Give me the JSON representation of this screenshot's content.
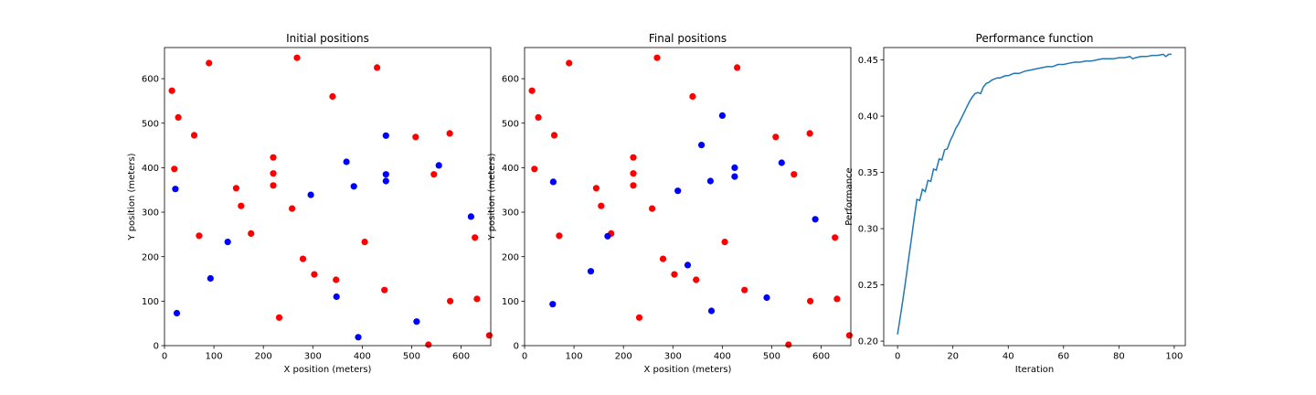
{
  "colors": {
    "red": "#ff0000",
    "blue": "#0000ff",
    "line": "#1f77b4"
  },
  "chart_data": [
    {
      "type": "scatter",
      "title": "Initial positions",
      "xlabel": "X position (meters)",
      "ylabel": "Y position (meters)",
      "xlim": [
        0,
        660
      ],
      "ylim": [
        0,
        670
      ],
      "xticks": [
        0,
        100,
        200,
        300,
        400,
        500,
        600
      ],
      "yticks": [
        0,
        100,
        200,
        300,
        400,
        500,
        600
      ],
      "series": [
        {
          "color": "red",
          "points": [
            [
              15,
              573
            ],
            [
              28,
              513
            ],
            [
              90,
              635
            ],
            [
              60,
              473
            ],
            [
              20,
              397
            ],
            [
              268,
              647
            ],
            [
              430,
              625
            ],
            [
              340,
              560
            ],
            [
              220,
              423
            ],
            [
              508,
              469
            ],
            [
              577,
              477
            ],
            [
              220,
              387
            ],
            [
              545,
              385
            ],
            [
              220,
              360
            ],
            [
              145,
              354
            ],
            [
              155,
              314
            ],
            [
              258,
              308
            ],
            [
              70,
              247
            ],
            [
              175,
              252
            ],
            [
              405,
              233
            ],
            [
              628,
              243
            ],
            [
              280,
              195
            ],
            [
              303,
              160
            ],
            [
              347,
              148
            ],
            [
              445,
              125
            ],
            [
              578,
              100
            ],
            [
              632,
              105
            ],
            [
              232,
              63
            ],
            [
              534,
              2
            ],
            [
              657,
              23
            ]
          ]
        },
        {
          "color": "blue",
          "points": [
            [
              22,
              352
            ],
            [
              448,
              472
            ],
            [
              368,
              413
            ],
            [
              555,
              405
            ],
            [
              448,
              385
            ],
            [
              448,
              370
            ],
            [
              383,
              358
            ],
            [
              296,
              339
            ],
            [
              620,
              290
            ],
            [
              128,
              233
            ],
            [
              93,
              151
            ],
            [
              348,
              110
            ],
            [
              510,
              54
            ],
            [
              25,
              73
            ],
            [
              392,
              19
            ]
          ]
        }
      ]
    },
    {
      "type": "scatter",
      "title": "Final positions",
      "xlabel": "X position (meters)",
      "ylabel": "Y position (meters)",
      "xlim": [
        0,
        660
      ],
      "ylim": [
        0,
        670
      ],
      "xticks": [
        0,
        100,
        200,
        300,
        400,
        500,
        600
      ],
      "yticks": [
        0,
        100,
        200,
        300,
        400,
        500,
        600
      ],
      "series": [
        {
          "color": "red",
          "points": [
            [
              15,
              573
            ],
            [
              28,
              513
            ],
            [
              90,
              635
            ],
            [
              60,
              473
            ],
            [
              20,
              397
            ],
            [
              268,
              647
            ],
            [
              430,
              625
            ],
            [
              340,
              560
            ],
            [
              220,
              423
            ],
            [
              508,
              469
            ],
            [
              577,
              477
            ],
            [
              220,
              387
            ],
            [
              545,
              385
            ],
            [
              220,
              360
            ],
            [
              145,
              354
            ],
            [
              155,
              314
            ],
            [
              258,
              308
            ],
            [
              70,
              247
            ],
            [
              175,
              252
            ],
            [
              405,
              233
            ],
            [
              628,
              243
            ],
            [
              280,
              195
            ],
            [
              303,
              160
            ],
            [
              347,
              148
            ],
            [
              445,
              125
            ],
            [
              578,
              100
            ],
            [
              632,
              105
            ],
            [
              232,
              63
            ],
            [
              534,
              2
            ],
            [
              657,
              23
            ]
          ]
        },
        {
          "color": "blue",
          "points": [
            [
              400,
              517
            ],
            [
              358,
              451
            ],
            [
              520,
              411
            ],
            [
              425,
              400
            ],
            [
              425,
              380
            ],
            [
              376,
              370
            ],
            [
              58,
              368
            ],
            [
              310,
              348
            ],
            [
              588,
              284
            ],
            [
              168,
              246
            ],
            [
              134,
              167
            ],
            [
              330,
              181
            ],
            [
              490,
              108
            ],
            [
              57,
              93
            ],
            [
              378,
              78
            ]
          ]
        }
      ]
    },
    {
      "type": "line",
      "title": "Performance function",
      "xlabel": "Iteration",
      "ylabel": "Performance",
      "xlim": [
        -5,
        104
      ],
      "ylim": [
        0.196,
        0.461
      ],
      "xticks": [
        0,
        20,
        40,
        60,
        80,
        100
      ],
      "yticks": [
        0.2,
        0.25,
        0.3,
        0.35,
        0.4,
        0.45
      ],
      "ytick_labels": [
        "0.20",
        "0.25",
        "0.30",
        "0.35",
        "0.40",
        "0.45"
      ],
      "series": [
        {
          "color": "line",
          "x": [
            0,
            1,
            2,
            3,
            4,
            5,
            6,
            7,
            8,
            9,
            10,
            11,
            12,
            13,
            14,
            15,
            16,
            17,
            18,
            19,
            20,
            21,
            22,
            23,
            24,
            25,
            26,
            27,
            28,
            29,
            30,
            31,
            32,
            33,
            34,
            35,
            36,
            37,
            38,
            39,
            40,
            42,
            44,
            46,
            48,
            50,
            52,
            54,
            56,
            58,
            60,
            62,
            64,
            66,
            68,
            70,
            72,
            74,
            76,
            78,
            80,
            82,
            84,
            85,
            86,
            88,
            90,
            92,
            94,
            96,
            97,
            98,
            99
          ],
          "y": [
            0.206,
            0.222,
            0.238,
            0.255,
            0.273,
            0.291,
            0.309,
            0.326,
            0.325,
            0.335,
            0.333,
            0.343,
            0.342,
            0.353,
            0.352,
            0.362,
            0.361,
            0.37,
            0.371,
            0.378,
            0.383,
            0.389,
            0.393,
            0.398,
            0.403,
            0.408,
            0.413,
            0.417,
            0.42,
            0.421,
            0.42,
            0.426,
            0.429,
            0.43,
            0.432,
            0.433,
            0.434,
            0.434,
            0.435,
            0.436,
            0.436,
            0.438,
            0.438,
            0.44,
            0.441,
            0.442,
            0.443,
            0.444,
            0.444,
            0.446,
            0.446,
            0.447,
            0.448,
            0.448,
            0.449,
            0.449,
            0.45,
            0.451,
            0.451,
            0.451,
            0.452,
            0.452,
            0.453,
            0.451,
            0.452,
            0.453,
            0.453,
            0.454,
            0.454,
            0.455,
            0.453,
            0.455,
            0.455
          ]
        }
      ]
    }
  ]
}
